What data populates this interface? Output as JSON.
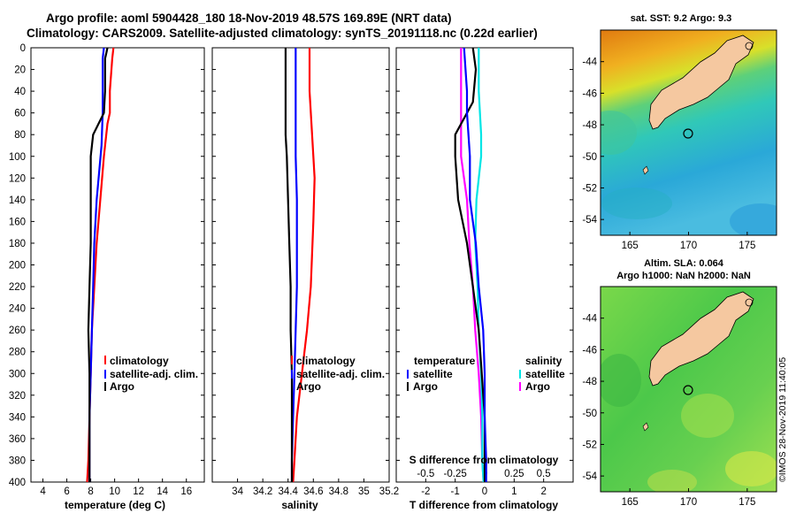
{
  "header": {
    "line1": "Argo profile: aoml 5904428_180 18-Nov-2019 48.57S 169.89E (NRT data)",
    "line2": "Climatology: CARS2009. Satellite-adjusted climatology: synTS_20191118.nc (0.22d earlier)"
  },
  "depth_ticks": [
    "0",
    "20",
    "40",
    "60",
    "80",
    "100",
    "120",
    "140",
    "160",
    "180",
    "200",
    "220",
    "240",
    "260",
    "280",
    "300",
    "320",
    "340",
    "360",
    "380",
    "400"
  ],
  "colors": {
    "climatology": "#ff0000",
    "satellite": "#0000ff",
    "argo": "#000000",
    "argo_s": "#ff00ff",
    "satellite_s": "#00e5e5"
  },
  "chart_data": [
    {
      "type": "line",
      "id": "temperature",
      "xlabel": "temperature (deg C)",
      "ylabel": "",
      "xlim": [
        3,
        17.5
      ],
      "ylim": [
        400,
        0
      ],
      "xticks": [
        "4",
        "6",
        "8",
        "10",
        "12",
        "14",
        "16"
      ],
      "legend": [
        "climatology",
        "satellite-adj. clim.",
        "Argo"
      ],
      "series": [
        {
          "name": "climatology",
          "depth": [
            0,
            10,
            40,
            60,
            70,
            100,
            140,
            180,
            220,
            260,
            300,
            340,
            380,
            400
          ],
          "values": [
            9.9,
            9.8,
            9.6,
            9.6,
            9.4,
            9.1,
            8.8,
            8.5,
            8.3,
            8.1,
            8.0,
            7.9,
            7.8,
            7.7
          ]
        },
        {
          "name": "satellite-adj. clim.",
          "depth": [
            0,
            10,
            40,
            60,
            90,
            140,
            180,
            220,
            260,
            300,
            340,
            380,
            400
          ],
          "values": [
            9.1,
            9.0,
            9.0,
            9.0,
            8.9,
            8.5,
            8.3,
            8.2,
            8.1,
            8.0,
            7.9,
            7.9,
            7.9
          ]
        },
        {
          "name": "Argo",
          "depth": [
            0,
            5,
            10,
            40,
            60,
            80,
            100,
            140,
            180,
            220,
            260,
            300,
            340,
            380,
            400
          ],
          "values": [
            9.4,
            9.3,
            9.2,
            9.2,
            9.1,
            8.2,
            8.0,
            8.0,
            8.0,
            7.9,
            7.8,
            7.9,
            7.9,
            7.9,
            7.9
          ]
        }
      ]
    },
    {
      "type": "line",
      "id": "salinity",
      "xlabel": "salinity",
      "ylabel": "",
      "xlim": [
        33.8,
        35.2
      ],
      "ylim": [
        400,
        0
      ],
      "xticks": [
        "34",
        "34.2",
        "34.4",
        "34.6",
        "34.8",
        "35",
        "35.2"
      ],
      "legend": [
        "climatology",
        "satellite-adj. clim.",
        "Argo"
      ],
      "series": [
        {
          "name": "climatology",
          "depth": [
            0,
            40,
            100,
            120,
            160,
            220,
            260,
            300,
            340,
            380,
            400
          ],
          "values": [
            34.57,
            34.57,
            34.6,
            34.61,
            34.6,
            34.58,
            34.55,
            34.51,
            34.47,
            34.45,
            34.44
          ]
        },
        {
          "name": "satellite-adj. clim.",
          "depth": [
            0,
            40,
            60,
            100,
            140,
            180,
            220,
            260,
            300,
            340,
            380,
            400
          ],
          "values": [
            34.46,
            34.46,
            34.46,
            34.46,
            34.47,
            34.47,
            34.47,
            34.46,
            34.45,
            34.44,
            34.43,
            34.43
          ]
        },
        {
          "name": "Argo",
          "depth": [
            0,
            80,
            100,
            140,
            180,
            220,
            260,
            300,
            340,
            380,
            400
          ],
          "values": [
            34.38,
            34.38,
            34.39,
            34.4,
            34.41,
            34.42,
            34.42,
            34.43,
            34.43,
            34.43,
            34.43
          ]
        }
      ]
    },
    {
      "type": "line",
      "id": "difference",
      "xlabel": "T difference from climatology",
      "top_label": "S difference from climatology",
      "xlim": [
        -3,
        3
      ],
      "s_xlim": [
        -0.75,
        0.75
      ],
      "ylim": [
        400,
        0
      ],
      "xticks": [
        "-2",
        "-1",
        "0",
        "1",
        "2"
      ],
      "s_xticks": [
        "-0.5",
        "-0.25",
        "0",
        "0.25",
        "0.5"
      ],
      "legend_temperature_title": "temperature",
      "legend_salinity_title": "salinity",
      "legend_left": [
        "satellite",
        "Argo"
      ],
      "legend_right": [
        "satellite",
        "Argo"
      ],
      "series": [
        {
          "name": "T satellite",
          "units": "deg C",
          "depth": [
            0,
            40,
            60,
            100,
            140,
            180,
            220,
            260,
            300,
            340,
            380,
            400
          ],
          "values": [
            -0.7,
            -0.6,
            -0.6,
            -0.5,
            -0.5,
            -0.3,
            -0.2,
            -0.05,
            0.0,
            0.0,
            0.05,
            0.05
          ]
        },
        {
          "name": "T Argo",
          "units": "deg C",
          "depth": [
            0,
            20,
            50,
            80,
            100,
            140,
            180,
            220,
            260,
            300,
            340,
            380,
            400
          ],
          "values": [
            -0.4,
            -0.3,
            -0.4,
            -1.0,
            -1.0,
            -0.9,
            -0.6,
            -0.4,
            -0.2,
            -0.1,
            0.0,
            0.0,
            0.0
          ]
        },
        {
          "name": "S satellite",
          "units": "psu",
          "depth": [
            0,
            40,
            80,
            100,
            140,
            180,
            220,
            260,
            300,
            340,
            380,
            400
          ],
          "values": [
            -0.05,
            -0.05,
            -0.03,
            -0.03,
            -0.07,
            -0.08,
            -0.06,
            -0.05,
            -0.03,
            -0.02,
            -0.02,
            -0.01
          ]
        },
        {
          "name": "S Argo",
          "units": "psu",
          "depth": [
            0,
            40,
            100,
            140,
            180,
            220,
            260,
            300,
            340,
            380,
            400
          ],
          "values": [
            -0.2,
            -0.2,
            -0.2,
            -0.15,
            -0.13,
            -0.1,
            -0.08,
            -0.05,
            -0.03,
            -0.02,
            -0.01
          ]
        }
      ]
    },
    {
      "type": "heatmap",
      "id": "sst_map",
      "title": "sat. SST: 9.2 Argo: 9.3",
      "xlim": [
        162.5,
        177.5
      ],
      "ylim": [
        -55,
        -42
      ],
      "xticks": [
        "165",
        "170",
        "175"
      ],
      "yticks": [
        "-44",
        "-46",
        "-48",
        "-50",
        "-52",
        "-54"
      ],
      "float_lon": 169.89,
      "float_lat": -48.57
    },
    {
      "type": "heatmap",
      "id": "sla_map",
      "title": "Altim. SLA: 0.064",
      "title2": "Argo h1000: NaN h2000: NaN",
      "xlim": [
        162.5,
        177.5
      ],
      "ylim": [
        -55,
        -42
      ],
      "xticks": [
        "165",
        "170",
        "175"
      ],
      "yticks": [
        "-44",
        "-46",
        "-48",
        "-50",
        "-52",
        "-54"
      ],
      "float_lon": 169.89,
      "float_lat": -48.57
    }
  ],
  "credit": "©IMOS 28-Nov-2019 11:40:05"
}
